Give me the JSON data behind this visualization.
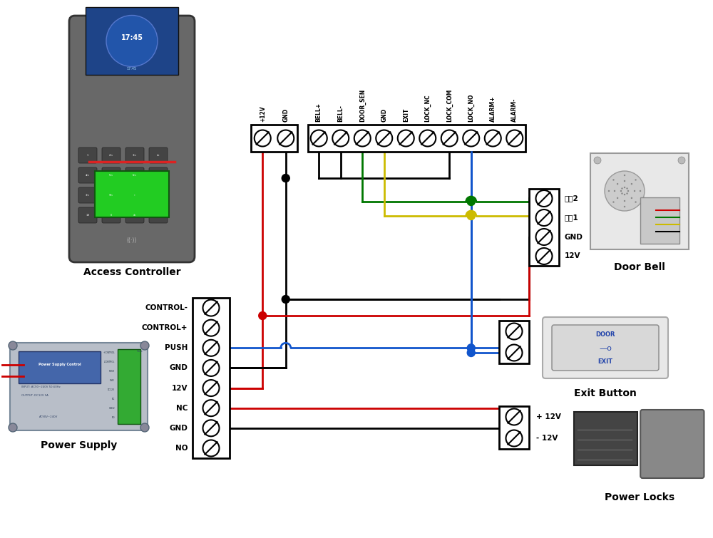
{
  "bg_color": "#ffffff",
  "component_labels": {
    "access_controller": "Access Controller",
    "power_supply": "Power Supply",
    "door_bell": "Door Bell",
    "exit_button": "Exit Button",
    "power_locks": "Power Locks"
  },
  "top_grp1_labels": [
    "+12V",
    "GND"
  ],
  "top_grp2_labels": [
    "BELL+",
    "BELL-",
    "DOOR_SEN",
    "GND",
    "EXIT",
    "LOCK_NC",
    "LOCK_COM",
    "LOCK_NO",
    "ALARM+",
    "ALARM-"
  ],
  "bot_labels": [
    "CONTROL-",
    "CONTROL+",
    "PUSH",
    "GND",
    "12V",
    "NC",
    "GND",
    "NO"
  ],
  "door_bell_labels": [
    "信号2",
    "信号1",
    "GND",
    "12V"
  ],
  "colors": {
    "black": "#000000",
    "red": "#cc0000",
    "blue": "#1155cc",
    "green": "#007700",
    "yellow": "#ccbb00",
    "white": "#ffffff",
    "gray_ac": "#6a6a6a",
    "gray_ps": "#b8bec8",
    "gray_db": "#d8d8d8",
    "gray_eb": "#e8e8e8",
    "green_fp": "#22bb22",
    "blue_screen": "#1a6aaa"
  }
}
